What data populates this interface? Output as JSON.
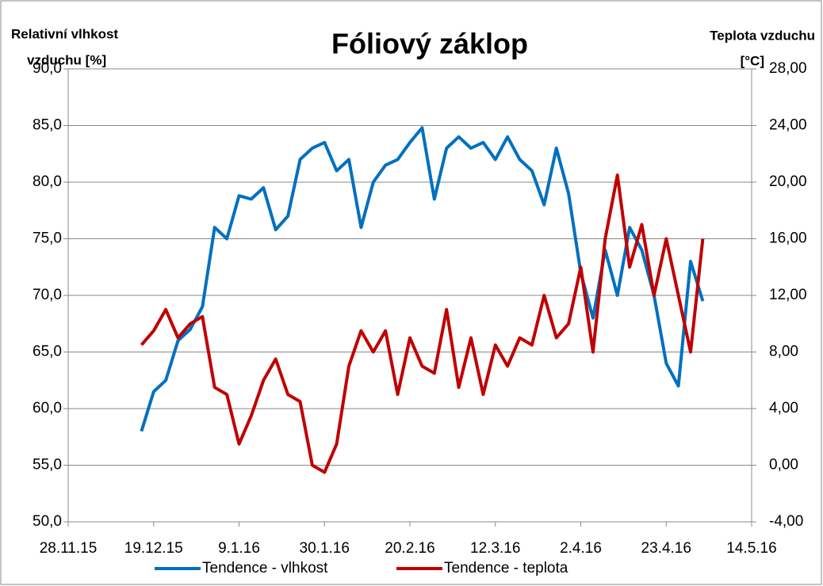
{
  "chart_data": {
    "type": "line",
    "title": "Fóliový záklop",
    "y_label": [
      "Relativní vlhkost",
      "vzduchu [%]"
    ],
    "y2_label": [
      "Teplota vzduchu",
      "[°C]"
    ],
    "x": [
      "2015-12-16",
      "2015-12-19",
      "2015-12-22",
      "2015-12-25",
      "2015-12-28",
      "2015-12-31",
      "2016-01-03",
      "2016-01-06",
      "2016-01-09",
      "2016-01-12",
      "2016-01-15",
      "2016-01-18",
      "2016-01-21",
      "2016-01-24",
      "2016-01-27",
      "2016-01-30",
      "2016-02-02",
      "2016-02-05",
      "2016-02-08",
      "2016-02-11",
      "2016-02-14",
      "2016-02-17",
      "2016-02-20",
      "2016-02-23",
      "2016-02-26",
      "2016-02-29",
      "2016-03-03",
      "2016-03-06",
      "2016-03-09",
      "2016-03-12",
      "2016-03-15",
      "2016-03-18",
      "2016-03-21",
      "2016-03-24",
      "2016-03-27",
      "2016-03-30",
      "2016-04-02",
      "2016-04-05",
      "2016-04-08",
      "2016-04-11",
      "2016-04-14",
      "2016-04-17",
      "2016-04-20",
      "2016-04-23",
      "2016-04-26",
      "2016-04-29",
      "2016-05-02"
    ],
    "series": [
      {
        "name": "Tendence - vlhkost",
        "color": "#0070c0",
        "axis": "y",
        "values": [
          58,
          61.5,
          62.5,
          66,
          67,
          69,
          76,
          75,
          78.8,
          78.5,
          79.5,
          75.8,
          77,
          82,
          83,
          83.5,
          81,
          82,
          76,
          80,
          81.5,
          82,
          83.5,
          84.8,
          78.5,
          83,
          84,
          83,
          83.5,
          82,
          84,
          82,
          81,
          78,
          83,
          79,
          72,
          68,
          74,
          70,
          76,
          74,
          70,
          64,
          62,
          73,
          69.5
        ]
      },
      {
        "name": "Tendence - teplota",
        "color": "#c00000",
        "axis": "y2",
        "values": [
          8.5,
          9.5,
          11,
          9,
          10,
          10.5,
          5.5,
          5,
          1.5,
          3.5,
          6,
          7.5,
          5,
          4.5,
          0,
          -0.5,
          1.5,
          7,
          9.5,
          8,
          9.5,
          5,
          9,
          7,
          6.5,
          11,
          5.5,
          9,
          5,
          8.5,
          7,
          9,
          8.5,
          12,
          9,
          10,
          14,
          8,
          16,
          20.5,
          14,
          17,
          12,
          16,
          12,
          8,
          16
        ]
      }
    ],
    "xlim": [
      "2015-11-28",
      "2016-05-14"
    ],
    "xticks": [
      {
        "value": "2015-11-28",
        "label": "28.11.15"
      },
      {
        "value": "2015-12-19",
        "label": "19.12.15"
      },
      {
        "value": "2016-01-09",
        "label": "9.1.16"
      },
      {
        "value": "2016-01-30",
        "label": "30.1.16"
      },
      {
        "value": "2016-02-20",
        "label": "20.2.16"
      },
      {
        "value": "2016-03-12",
        "label": "12.3.16"
      },
      {
        "value": "2016-04-02",
        "label": "2.4.16"
      },
      {
        "value": "2016-04-23",
        "label": "23.4.16"
      },
      {
        "value": "2016-05-14",
        "label": "14.5.16"
      }
    ],
    "ylim": [
      50,
      90
    ],
    "yticks": [
      {
        "value": 50,
        "label": "50,0"
      },
      {
        "value": 55,
        "label": "55,0"
      },
      {
        "value": 60,
        "label": "60,0"
      },
      {
        "value": 65,
        "label": "65,0"
      },
      {
        "value": 70,
        "label": "70,0"
      },
      {
        "value": 75,
        "label": "75,0"
      },
      {
        "value": 80,
        "label": "80,0"
      },
      {
        "value": 85,
        "label": "85,0"
      },
      {
        "value": 90,
        "label": "90,0"
      }
    ],
    "y2lim": [
      -4,
      28
    ],
    "y2ticks": [
      {
        "value": -4,
        "label": "-4,00"
      },
      {
        "value": 0,
        "label": "0,00"
      },
      {
        "value": 4,
        "label": "4,00"
      },
      {
        "value": 8,
        "label": "8,00"
      },
      {
        "value": 12,
        "label": "12,00"
      },
      {
        "value": 16,
        "label": "16,00"
      },
      {
        "value": 20,
        "label": "20,00"
      },
      {
        "value": 24,
        "label": "24,00"
      },
      {
        "value": 28,
        "label": "28,00"
      }
    ],
    "grid": true,
    "legend": "bottom"
  }
}
